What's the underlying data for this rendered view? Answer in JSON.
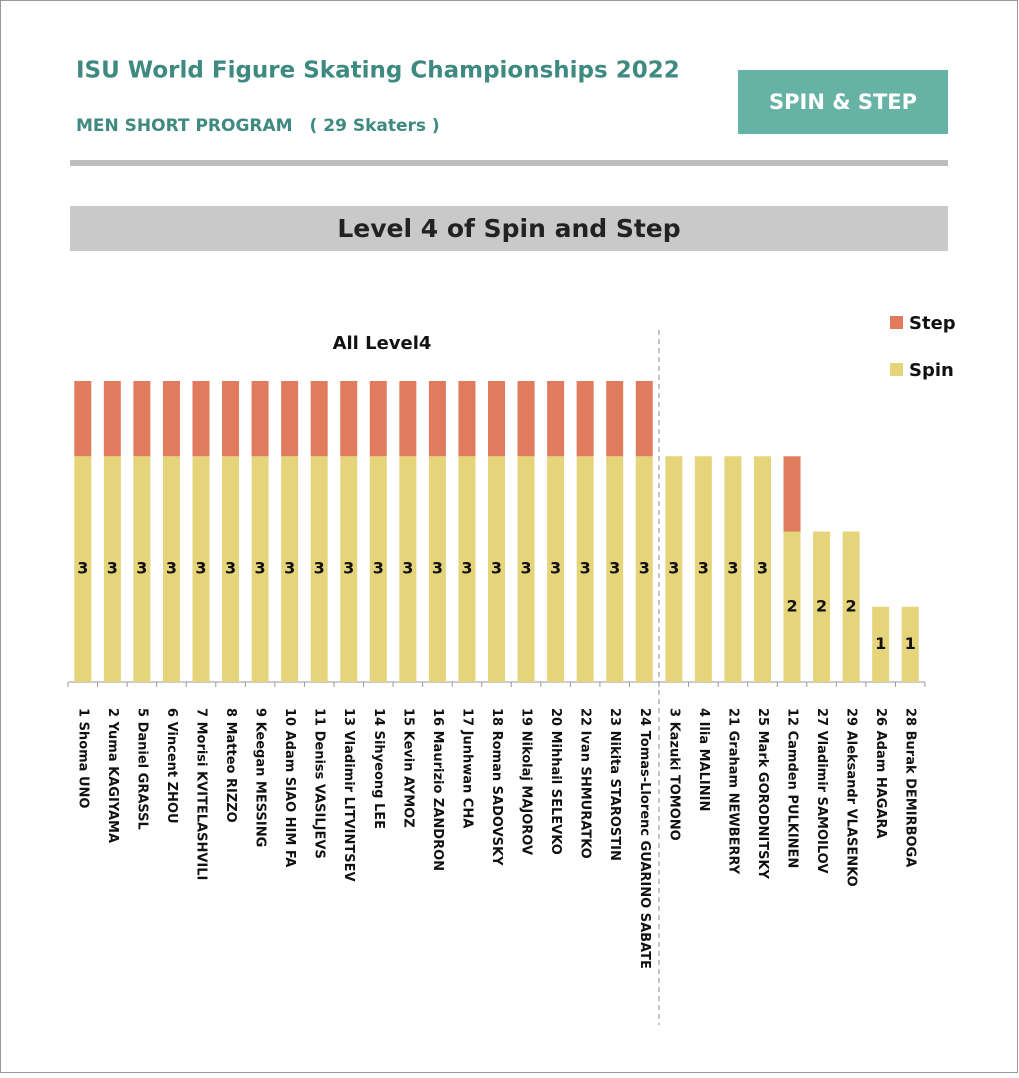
{
  "header": {
    "title": "ISU World Figure Skating Championships 2022",
    "subtitle": "MEN SHORT PROGRAM　( 29 Skaters )",
    "badge": "SPIN & STEP"
  },
  "chart_data": {
    "type": "stacked-bar",
    "title": "Level 4 of Spin and Step",
    "annotation": "All Level4",
    "categories": [
      "1 Shoma UNO",
      "2 Yuma KAGIYAMA",
      "5 Daniel GRASSL",
      "6 Vincent ZHOU",
      "7 Morisi KVITELASHVILI",
      "8 Matteo RIZZO",
      "9 Keegan MESSING",
      "10 Adam SIAO HIM FA",
      "11 Deniss VASILJEVS",
      "13 Vladimir LITVINTSEV",
      "14 Sihyeong LEE",
      "15 Kevin AYMOZ",
      "16 Maurizio ZANDRON",
      "17 Junhwan CHA",
      "18 Roman SADOVSKY",
      "19 Nikolaj MAJOROV",
      "20 Mihhail SELEVKO",
      "22 Ivan SHMURATKO",
      "23 Nikita STAROSTIN",
      "24 Tomas-Llorenc GUARINO SABATE",
      "3 Kazuki TOMONO",
      "4 Ilia MALININ",
      "21 Graham NEWBERRY",
      "25 Mark GORODNITSKY",
      "12 Camden PULKINEN",
      "27 Vladimir SAMOILOV",
      "29 Aleksandr VLASENKO",
      "26 Adam HAGARA",
      "28 Burak DEMIRBOGA"
    ],
    "series": [
      {
        "name": "Spin",
        "color": "#e6d47b",
        "values": [
          3,
          3,
          3,
          3,
          3,
          3,
          3,
          3,
          3,
          3,
          3,
          3,
          3,
          3,
          3,
          3,
          3,
          3,
          3,
          3,
          3,
          3,
          3,
          3,
          2,
          2,
          2,
          1,
          1
        ],
        "data_labels": true
      },
      {
        "name": "Step",
        "color": "#e07b5d",
        "values": [
          1,
          1,
          1,
          1,
          1,
          1,
          1,
          1,
          1,
          1,
          1,
          1,
          1,
          1,
          1,
          1,
          1,
          1,
          1,
          1,
          0,
          0,
          0,
          0,
          1,
          0,
          0,
          0,
          0
        ]
      }
    ],
    "ylim": [
      0,
      4
    ],
    "legend": "top-right"
  }
}
